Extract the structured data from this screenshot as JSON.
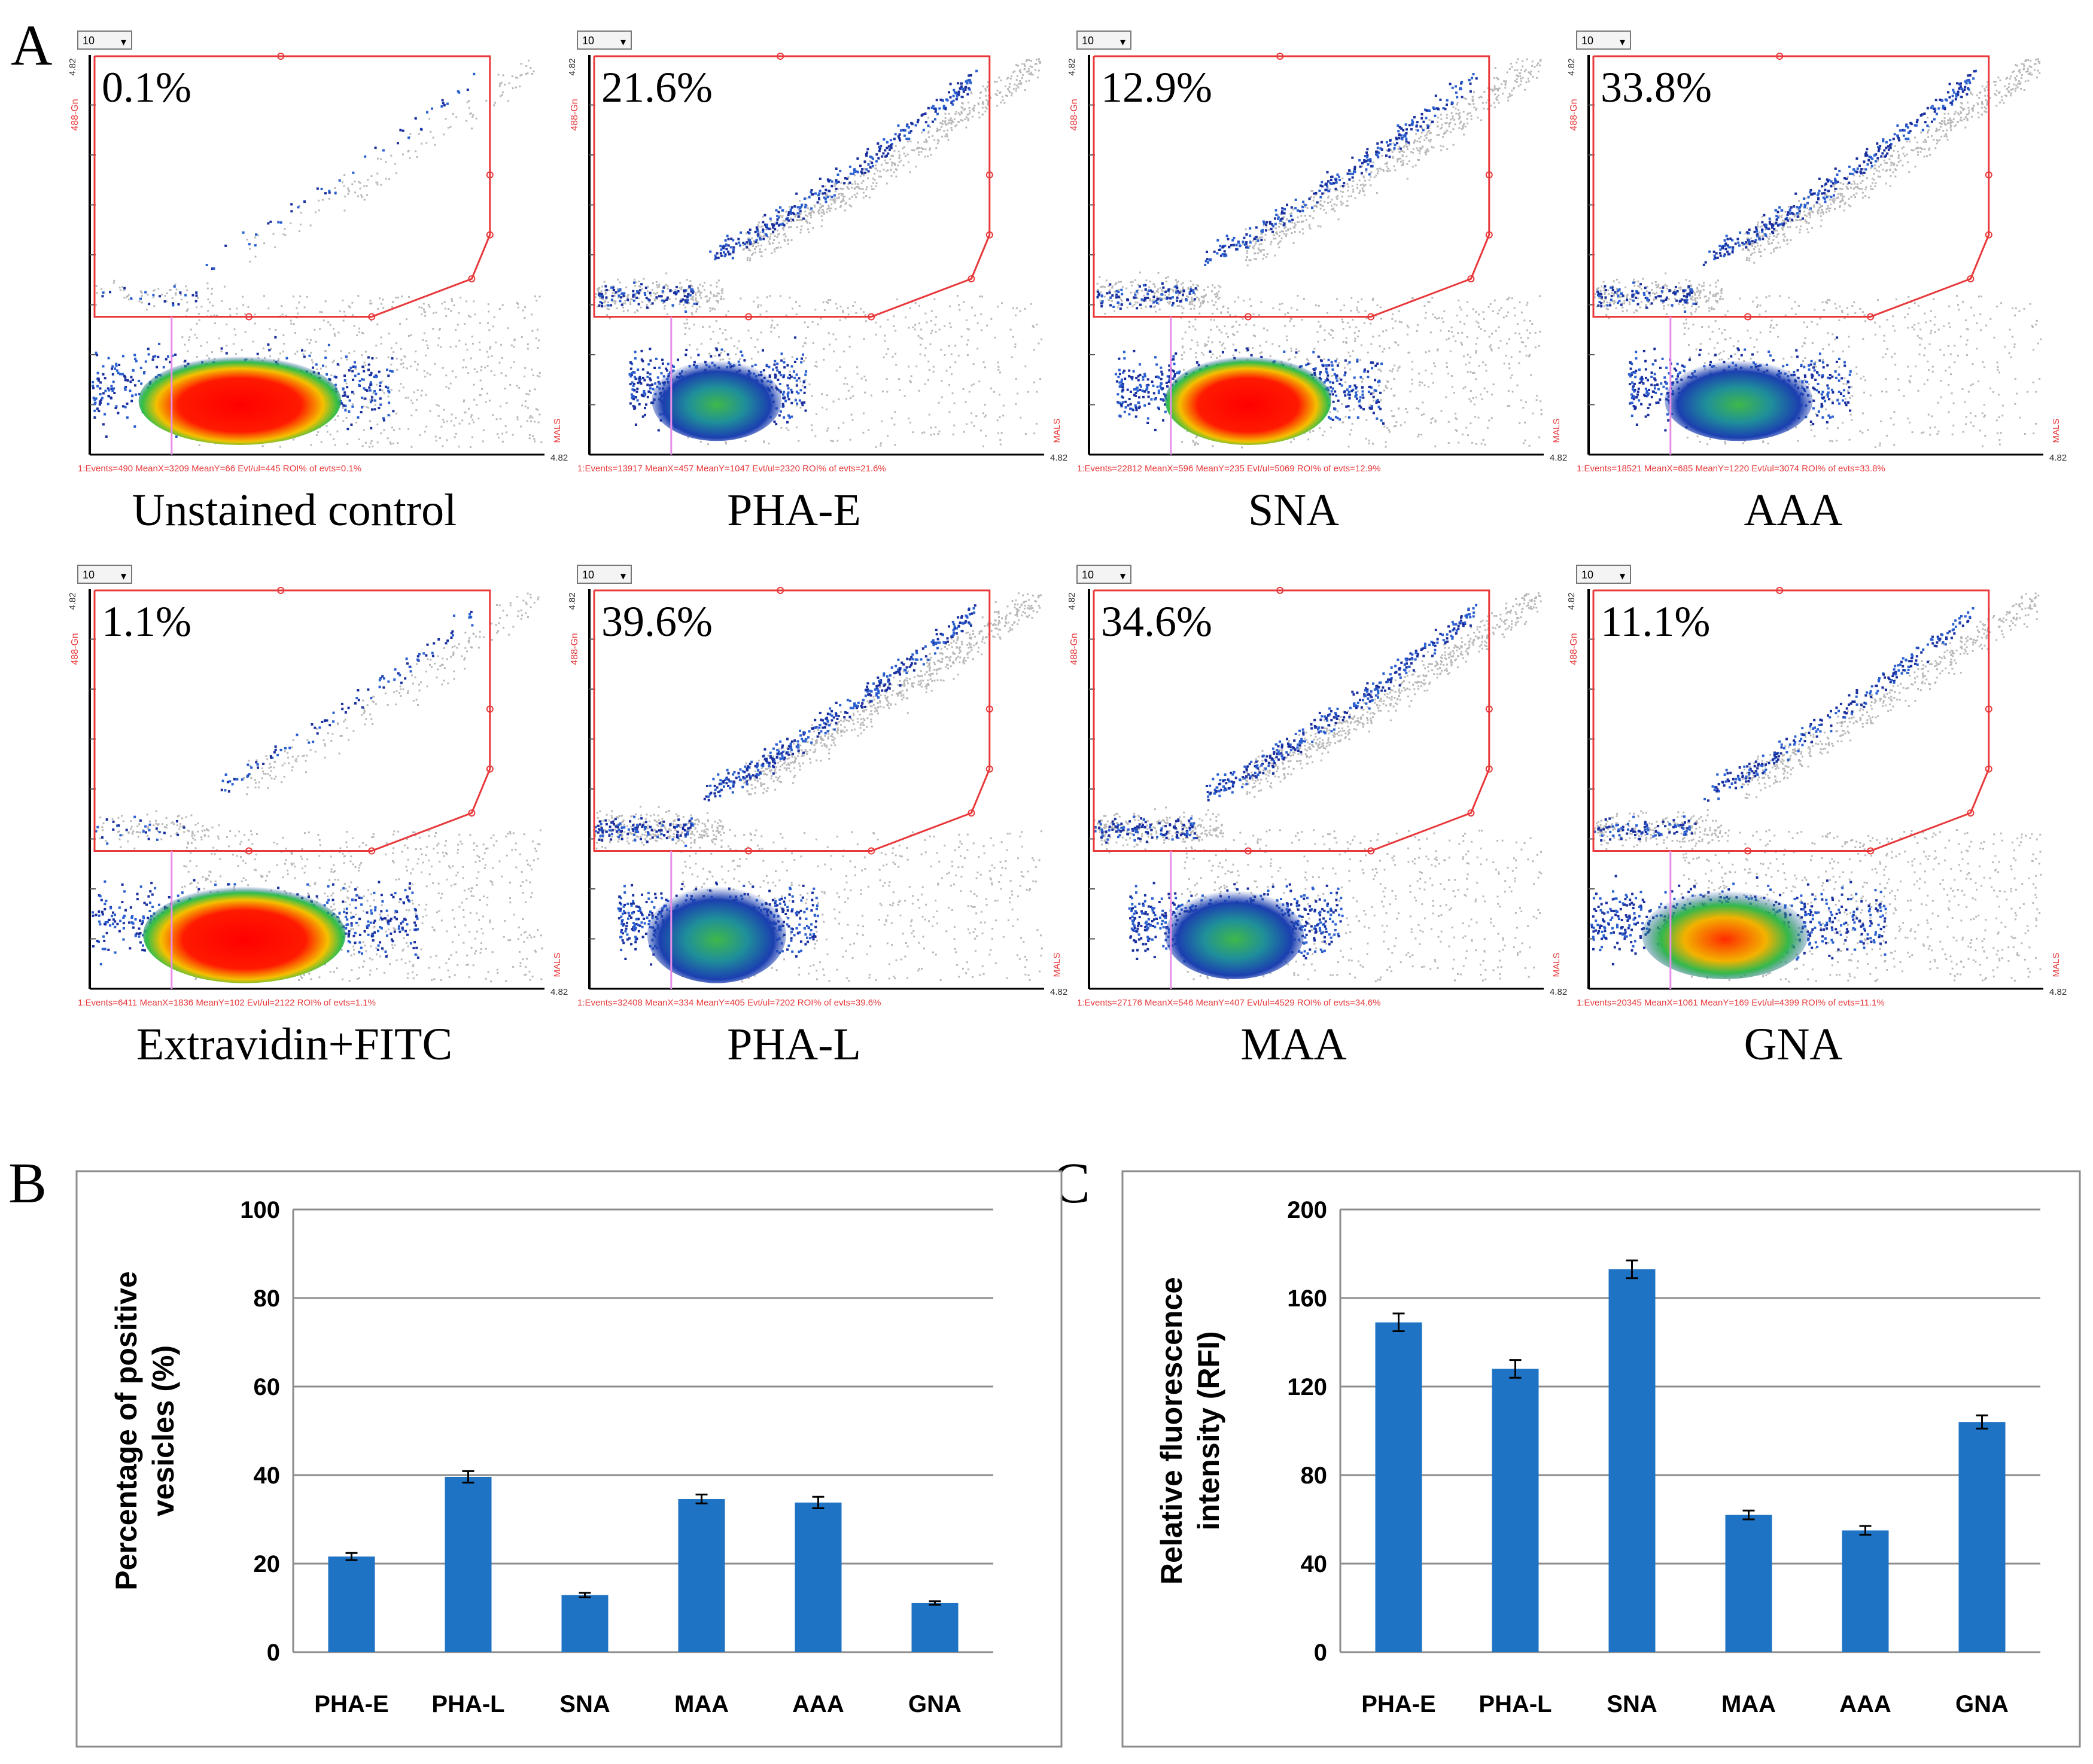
{
  "panel_letters": {
    "a": "A",
    "b": "B",
    "c": "C"
  },
  "flow_common": {
    "dropdown_value": "10",
    "y_axis_label": "488-Gn",
    "x_axis_label": "MALS",
    "axis_max_label": "4.82",
    "axis_min_label": "4.82"
  },
  "flow_plots": [
    {
      "percent": "0.1%",
      "name": "Unstained control",
      "stats": "1:Events=490   MeanX=3209  MeanY=66    Evt/ul=445   ROI% of evts=0.1%"
    },
    {
      "percent": "21.6%",
      "name": "PHA-E",
      "stats": "1:Events=13917  MeanX=457  MeanY=1047  Evt/ul=2320  ROI% of evts=21.6%"
    },
    {
      "percent": "12.9%",
      "name": "SNA",
      "stats": "1:Events=22812  MeanX=596  MeanY=235   Evt/ul=5069  ROI% of evts=12.9%"
    },
    {
      "percent": "33.8%",
      "name": "AAA",
      "stats": "1:Events=18521  MeanX=685  MeanY=1220  Evt/ul=3074  ROI% of evts=33.8%"
    },
    {
      "percent": "1.1%",
      "name": "Extravidin+FITC",
      "stats": "1:Events=6411   MeanX=1836  MeanY=102   Evt/ul=2122  ROI% of evts=1.1%"
    },
    {
      "percent": "39.6%",
      "name": "PHA-L",
      "stats": "1:Events=32408  MeanX=334  MeanY=405   Evt/ul=7202  ROI% of evts=39.6%"
    },
    {
      "percent": "34.6%",
      "name": "MAA",
      "stats": "1:Events=27176  MeanX=546  MeanY=407   Evt/ul=4529  ROI% of evts=34.6%"
    },
    {
      "percent": "11.1%",
      "name": "GNA",
      "stats": "1:Events=20345  MeanX=1061  MeanY=169  Evt/ul=4399  ROI% of evts=11.1%"
    }
  ],
  "colors": {
    "bar": "#1f73c4",
    "gate": "#e8383a",
    "grid": "#8c8c8c",
    "hist_pink": "#e88ee8"
  },
  "chart_data": [
    {
      "type": "bar",
      "panel": "B",
      "title": "",
      "xlabel": "",
      "ylabel": "Percentage of positive vesicles (%)",
      "ylabel_lines": [
        "Percentage of positive",
        "vesicles (%)"
      ],
      "categories": [
        "PHA-E",
        "PHA-L",
        "SNA",
        "MAA",
        "AAA",
        "GNA"
      ],
      "values": [
        21.6,
        39.6,
        12.9,
        34.6,
        33.8,
        11.1
      ],
      "errors": [
        0.8,
        1.3,
        0.5,
        1.0,
        1.3,
        0.4
      ],
      "ylim": [
        0,
        100
      ],
      "yticks": [
        0,
        20,
        40,
        60,
        80,
        100
      ],
      "grid": true
    },
    {
      "type": "bar",
      "panel": "C",
      "title": "",
      "xlabel": "",
      "ylabel": "Relative fluorescence intensity (RFI)",
      "ylabel_lines": [
        "Relative fluorescence",
        "intensity (RFI)"
      ],
      "categories": [
        "PHA-E",
        "PHA-L",
        "SNA",
        "MAA",
        "AAA",
        "GNA"
      ],
      "values": [
        149,
        128,
        173,
        62,
        55,
        104
      ],
      "errors": [
        4,
        4,
        4,
        2,
        2,
        3
      ],
      "ylim": [
        0,
        200
      ],
      "yticks": [
        0,
        40,
        80,
        120,
        160,
        200
      ],
      "grid": true
    }
  ]
}
